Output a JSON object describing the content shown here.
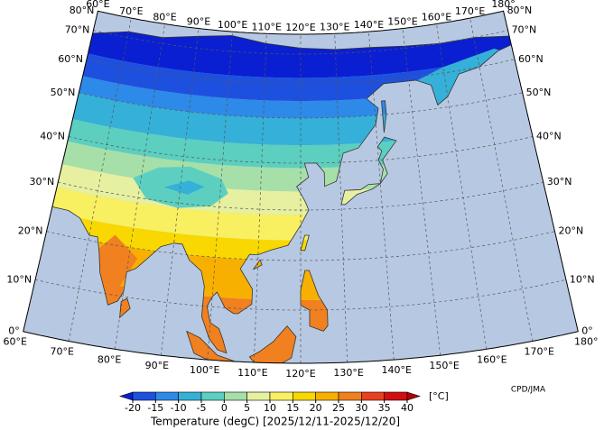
{
  "map": {
    "lon_ticks": [
      {
        "value": 60,
        "label": "60°E"
      },
      {
        "value": 70,
        "label": "70°E"
      },
      {
        "value": 80,
        "label": "80°E"
      },
      {
        "value": 90,
        "label": "90°E"
      },
      {
        "value": 100,
        "label": "100°E"
      },
      {
        "value": 110,
        "label": "110°E"
      },
      {
        "value": 120,
        "label": "120°E"
      },
      {
        "value": 130,
        "label": "130°E"
      },
      {
        "value": 140,
        "label": "140°E"
      },
      {
        "value": 150,
        "label": "150°E"
      },
      {
        "value": 160,
        "label": "160°E"
      },
      {
        "value": 170,
        "label": "170°E"
      },
      {
        "value": 180,
        "label": "180°"
      }
    ],
    "lat_ticks": [
      {
        "value": 0,
        "label": "0°"
      },
      {
        "value": 10,
        "label": "10°N"
      },
      {
        "value": 20,
        "label": "20°N"
      },
      {
        "value": 30,
        "label": "30°N"
      },
      {
        "value": 40,
        "label": "40°N"
      },
      {
        "value": 50,
        "label": "50°N"
      },
      {
        "value": 60,
        "label": "60°N"
      },
      {
        "value": 70,
        "label": "70°N"
      },
      {
        "value": 80,
        "label": "80°N"
      }
    ]
  },
  "colorbar": {
    "ticks": [
      -20,
      -15,
      -10,
      -5,
      0,
      5,
      10,
      15,
      20,
      25,
      30,
      35,
      40
    ],
    "colors": [
      "#0a1fd1",
      "#1e50e0",
      "#2d8ae8",
      "#35b0d8",
      "#5ccfc0",
      "#a6e0a8",
      "#e6f0a0",
      "#f8f060",
      "#f8d800",
      "#f8b000",
      "#f08020",
      "#e84020",
      "#d01010",
      "#b00000"
    ],
    "unit": "[°C]",
    "label": "Temperature (degC) [2025/12/11-2025/12/20]"
  },
  "credit": "CPD/JMA"
}
